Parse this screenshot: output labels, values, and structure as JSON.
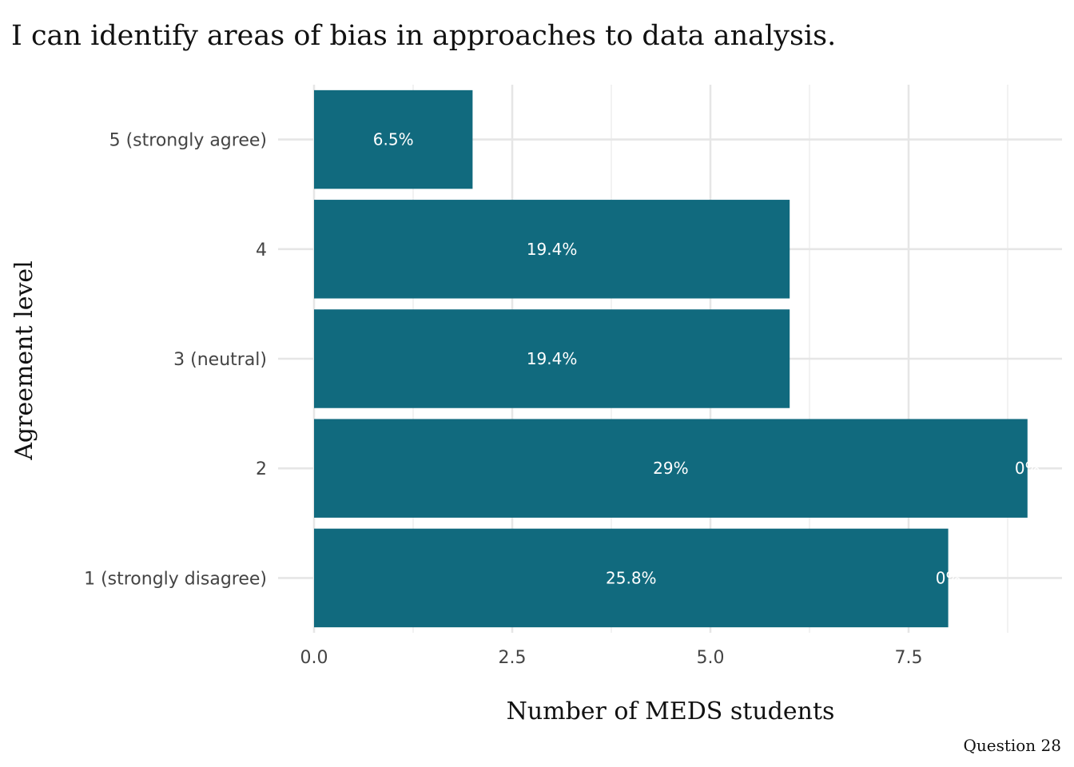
{
  "chart_data": {
    "type": "bar",
    "orientation": "horizontal",
    "title": "I can identify areas of bias in approaches to data analysis.",
    "xlabel": "Number of MEDS students",
    "ylabel": "Agreement level",
    "caption": "Question 28",
    "categories": [
      "1 (strongly disagree)",
      "2",
      "3 (neutral)",
      "4",
      "5 (strongly agree)"
    ],
    "values": [
      8,
      9,
      6,
      6,
      2
    ],
    "bar_labels": [
      "25.8%",
      "29%",
      "19.4%",
      "19.4%",
      "6.5%"
    ],
    "secondary_labels": [
      "0%",
      "0%",
      null,
      null,
      null
    ],
    "xlim": [
      0,
      9.4
    ],
    "xticks": [
      0,
      2.5,
      5,
      7.5
    ],
    "xtick_labels": [
      "0.0",
      "2.5",
      "5.0",
      "7.5"
    ],
    "grid": true,
    "legend": "none",
    "colors": {
      "bar": "#116a7e",
      "grid": "#e6e6e6",
      "bar_text": "#ffffff"
    }
  }
}
